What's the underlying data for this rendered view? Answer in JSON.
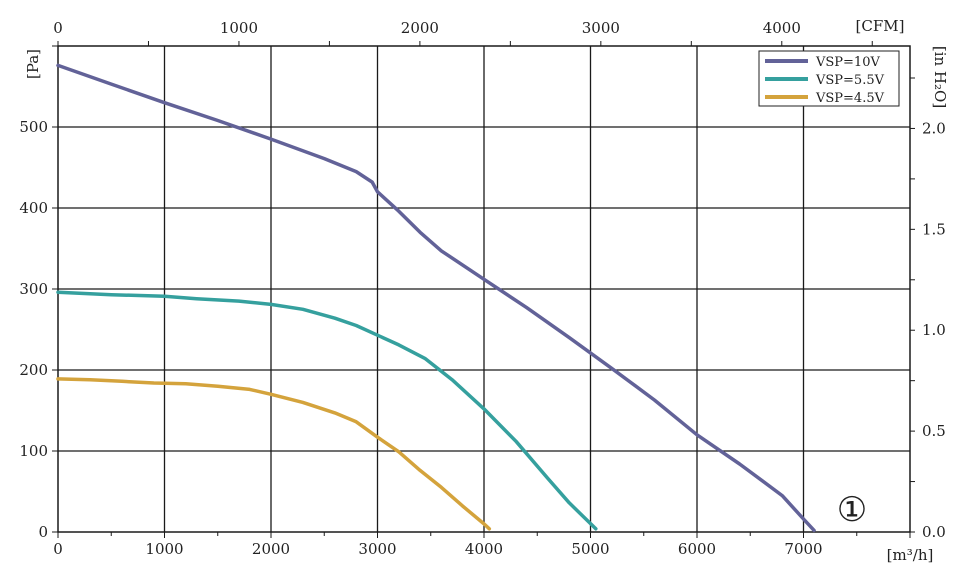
{
  "chart_data": {
    "type": "line",
    "title": "",
    "x_unit_label": "[m³/h]",
    "x_secondary_unit_label": "[CFM]",
    "y_unit_label": "[Pa]",
    "y_secondary_unit_label": "[in H₂O]",
    "xlim": [
      0,
      8000
    ],
    "ylim": [
      0,
      600
    ],
    "x_secondary_lim_cfm": [
      0,
      4708.6
    ],
    "y_secondary_lim_inh2o": [
      0,
      2.4086
    ],
    "x_ticks": [
      0,
      1000,
      2000,
      3000,
      4000,
      5000,
      6000,
      7000
    ],
    "x_tick_labels": [
      "0",
      "1000",
      "2000",
      "3000",
      "4000",
      "5000",
      "6000",
      "7000"
    ],
    "y_ticks": [
      0,
      100,
      200,
      300,
      400,
      500
    ],
    "y_tick_labels": [
      "0",
      "100",
      "200",
      "300",
      "400",
      "500"
    ],
    "x_secondary_ticks": [
      0,
      1000,
      2000,
      3000,
      4000
    ],
    "x_secondary_tick_labels": [
      "0",
      "1000",
      "2000",
      "3000",
      "4000"
    ],
    "y_secondary_ticks": [
      0,
      0.5,
      1.0,
      1.5,
      2.0
    ],
    "y_secondary_tick_labels": [
      "0.0",
      "0.5",
      "1.0",
      "1.5",
      "2.0"
    ],
    "grid": true,
    "legend_position": "top-right",
    "annotation": "①",
    "series": [
      {
        "name": "VSP=10V",
        "color": "#626298",
        "points": [
          [
            0,
            576
          ],
          [
            500,
            553
          ],
          [
            1000,
            530
          ],
          [
            1500,
            508
          ],
          [
            2000,
            485
          ],
          [
            2500,
            461
          ],
          [
            2800,
            445
          ],
          [
            2950,
            432
          ],
          [
            3000,
            420
          ],
          [
            3200,
            396
          ],
          [
            3400,
            370
          ],
          [
            3600,
            347
          ],
          [
            4000,
            312
          ],
          [
            4400,
            277
          ],
          [
            4800,
            240
          ],
          [
            5200,
            202
          ],
          [
            5600,
            163
          ],
          [
            6000,
            120
          ],
          [
            6400,
            84
          ],
          [
            6800,
            45
          ],
          [
            7000,
            16
          ],
          [
            7100,
            2
          ]
        ]
      },
      {
        "name": "VSP=5.5V",
        "color": "#35a09e",
        "points": [
          [
            0,
            296
          ],
          [
            500,
            293
          ],
          [
            1000,
            291
          ],
          [
            1300,
            288
          ],
          [
            1700,
            285
          ],
          [
            2000,
            281
          ],
          [
            2300,
            275
          ],
          [
            2600,
            264
          ],
          [
            2800,
            255
          ],
          [
            3000,
            243
          ],
          [
            3200,
            231
          ],
          [
            3450,
            214
          ],
          [
            3700,
            188
          ],
          [
            4000,
            152
          ],
          [
            4300,
            112
          ],
          [
            4600,
            66
          ],
          [
            4800,
            36
          ],
          [
            5050,
            4
          ]
        ]
      },
      {
        "name": "VSP=4.5V",
        "color": "#d4a33c",
        "points": [
          [
            0,
            189
          ],
          [
            300,
            188
          ],
          [
            600,
            186
          ],
          [
            900,
            184
          ],
          [
            1200,
            183
          ],
          [
            1500,
            180
          ],
          [
            1800,
            176
          ],
          [
            2000,
            170
          ],
          [
            2300,
            160
          ],
          [
            2600,
            147
          ],
          [
            2800,
            136
          ],
          [
            3000,
            117
          ],
          [
            3200,
            99
          ],
          [
            3400,
            76
          ],
          [
            3600,
            55
          ],
          [
            3800,
            32
          ],
          [
            4000,
            10
          ],
          [
            4050,
            4
          ]
        ]
      }
    ]
  }
}
